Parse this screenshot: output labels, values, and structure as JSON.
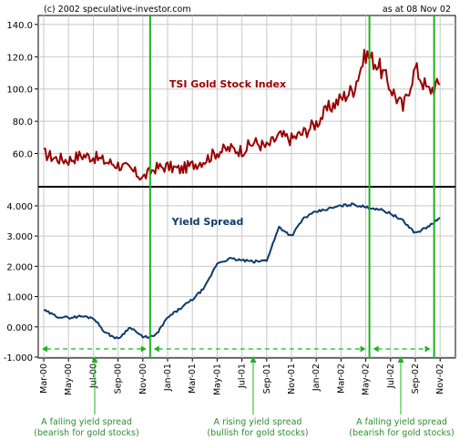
{
  "chart_data": [
    {
      "type": "line",
      "panel": "top",
      "title": "TSI Gold Stock Index",
      "series_color": "#990000",
      "ylim": [
        40,
        145
      ],
      "yticks": [
        "140.0",
        "120.0",
        "100.0",
        "80.0",
        "60.0"
      ],
      "ytick_values": [
        140,
        120,
        100,
        80,
        60
      ],
      "series": [
        {
          "name": "TSI Gold Stock Index",
          "x": [
            "Mar-00",
            "Apr-00",
            "May-00",
            "Jun-00",
            "Jul-00",
            "Aug-00",
            "Sep-00",
            "Oct-00",
            "Nov-00",
            "Dec-00",
            "Jan-01",
            "Feb-01",
            "Mar-01",
            "Apr-01",
            "May-01",
            "Jun-01",
            "Jul-01",
            "Aug-01",
            "Sep-01",
            "Oct-01",
            "Nov-01",
            "Dec-01",
            "Jan-02",
            "Feb-02",
            "Mar-02",
            "Apr-02",
            "May-02",
            "Jun-02",
            "Jul-02",
            "Aug-02",
            "Sep-02",
            "Oct-02",
            "Nov-02"
          ],
          "values": [
            60,
            57,
            56,
            59,
            58,
            55,
            53,
            50,
            45,
            51,
            52,
            50,
            53,
            56,
            61,
            63,
            62,
            67,
            64,
            71,
            69,
            73,
            79,
            88,
            94,
            100,
            122,
            115,
            101,
            88,
            113,
            99,
            103
          ]
        }
      ]
    },
    {
      "type": "line",
      "panel": "bottom",
      "title": "Yield Spread",
      "series_color": "#0b3a6b",
      "ylim": [
        -1.0,
        4.6
      ],
      "yticks": [
        "4.000",
        "3.000",
        "2.000",
        "1.000",
        "0.000",
        "-1.000"
      ],
      "ytick_values": [
        4,
        3,
        2,
        1,
        0,
        -1
      ],
      "series": [
        {
          "name": "Yield Spread",
          "x": [
            "Mar-00",
            "Apr-00",
            "May-00",
            "Jun-00",
            "Jul-00",
            "Aug-00",
            "Sep-00",
            "Oct-00",
            "Nov-00",
            "Dec-00",
            "Jan-01",
            "Feb-01",
            "Mar-01",
            "Apr-01",
            "May-01",
            "Jun-01",
            "Jul-01",
            "Aug-01",
            "Sep-01",
            "Oct-01",
            "Nov-01",
            "Dec-01",
            "Jan-02",
            "Feb-02",
            "Mar-02",
            "Apr-02",
            "May-02",
            "Jun-02",
            "Jul-02",
            "Aug-02",
            "Sep-02",
            "Oct-02",
            "Nov-02"
          ],
          "values": [
            0.55,
            0.35,
            0.3,
            0.35,
            0.3,
            -0.2,
            -0.4,
            0.0,
            -0.35,
            -0.3,
            0.3,
            0.6,
            0.9,
            1.3,
            2.1,
            2.25,
            2.2,
            2.15,
            2.2,
            3.3,
            3.0,
            3.6,
            3.8,
            3.9,
            4.0,
            4.05,
            3.95,
            3.9,
            3.75,
            3.5,
            3.1,
            3.3,
            3.6
          ]
        }
      ]
    }
  ],
  "header": {
    "copyright": "(c) 2002 speculative-investor.com",
    "as_at": "as at 08 Nov 02"
  },
  "x_axis": {
    "tick_labels": [
      "Mar-00",
      "May-00",
      "Jul-00",
      "Sep-00",
      "Nov-00",
      "Jan-01",
      "Mar-01",
      "May-01",
      "Jul-01",
      "Sep-01",
      "Nov-01",
      "Jan-02",
      "Mar-02",
      "May-02",
      "Jul-02",
      "Sep-02",
      "Nov-02"
    ]
  },
  "vertical_markers": {
    "color": "#1db31d",
    "dates": [
      "Nov-00",
      "May-02",
      "Oct-02"
    ]
  },
  "annotations": [
    {
      "text_line1": "A falling yield spread",
      "text_line2": "(bearish for gold stocks)"
    },
    {
      "text_line1": "A rising yield spread",
      "text_line2": "(bullish for gold stocks)"
    },
    {
      "text_line1": "A falling yield spread",
      "text_line2": "(bearish for gold stocks)"
    }
  ],
  "colors": {
    "annotation_green": "#2e8b2e",
    "grid": "#c8c8c8",
    "axis": "#000000"
  }
}
